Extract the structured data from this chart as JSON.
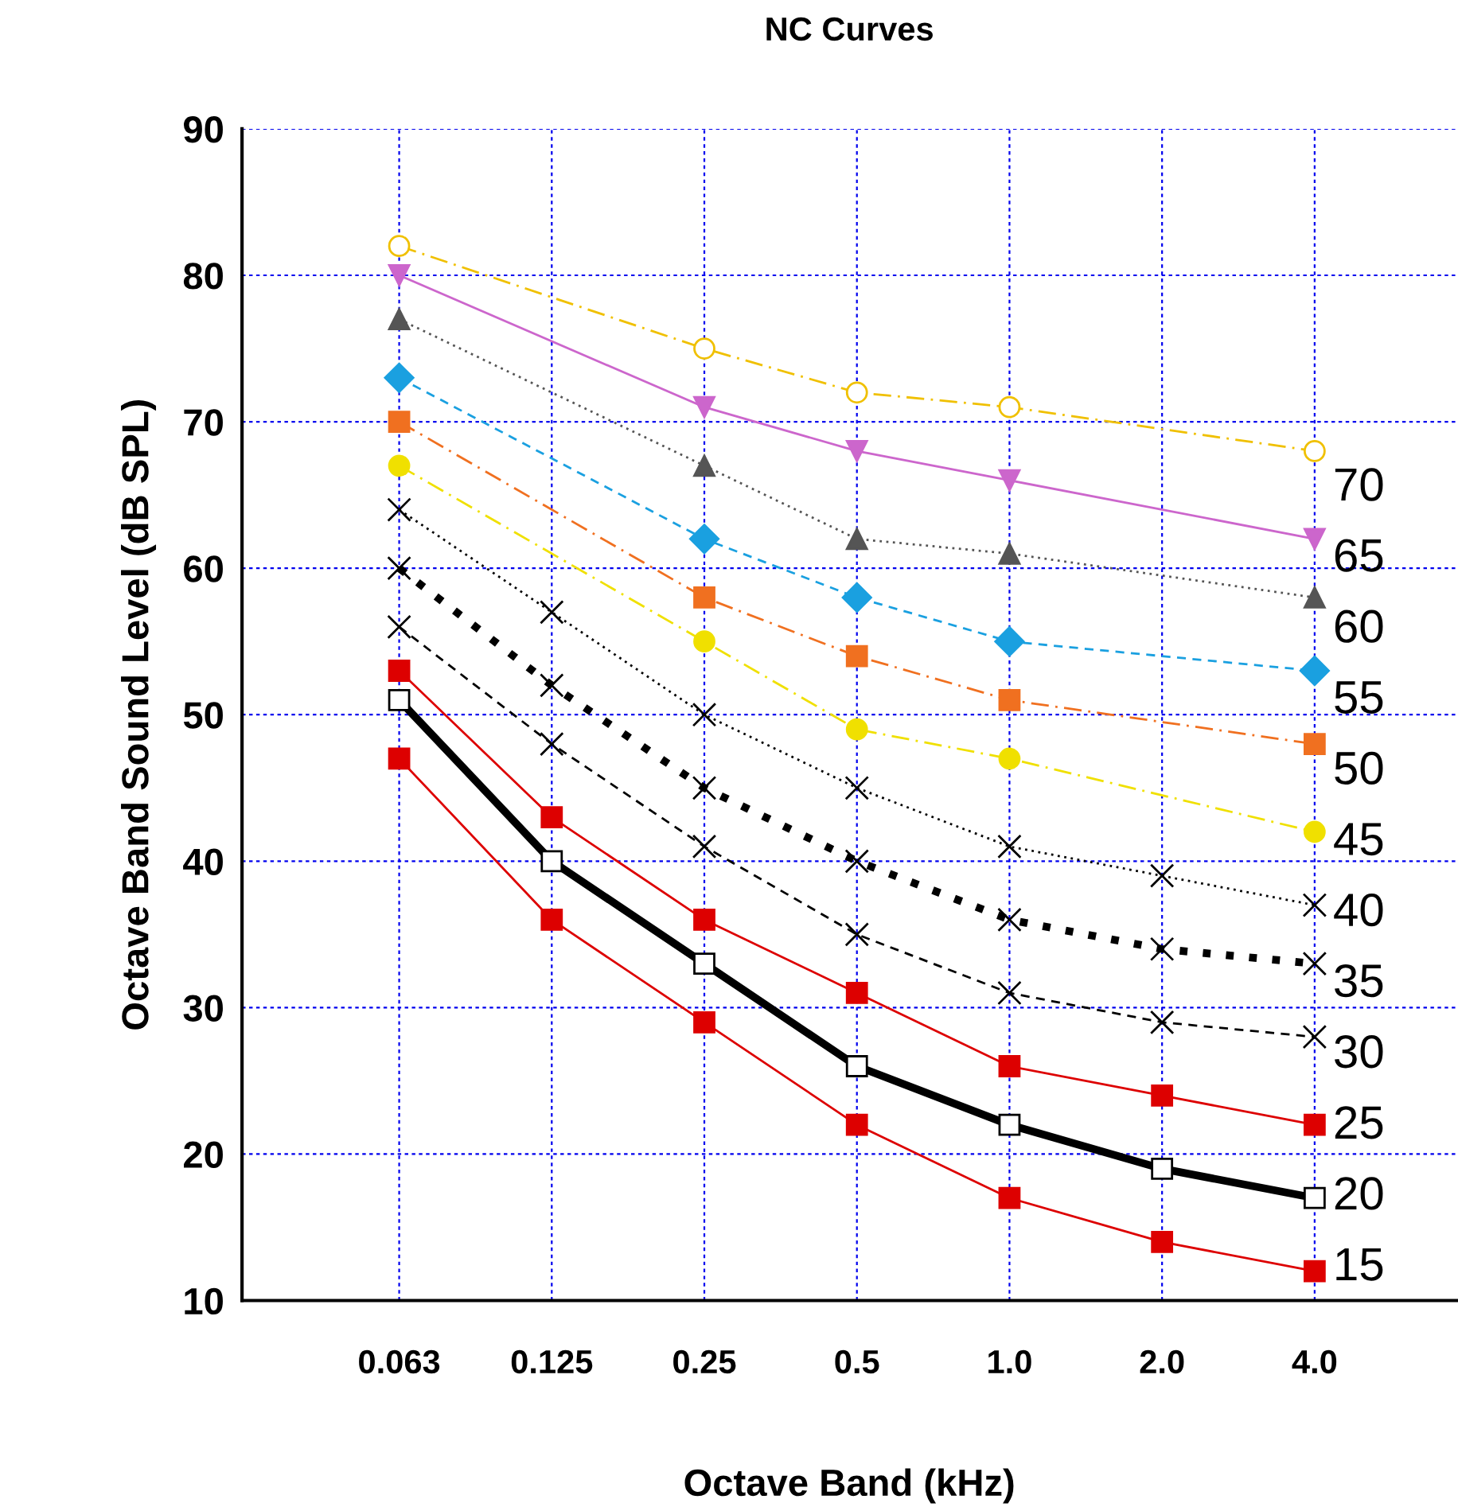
{
  "chart_data": {
    "type": "line",
    "title": "NC Curves",
    "xlabel": "Octave Band (kHz)",
    "ylabel": "Octave Band Sound Level (dB SPL)",
    "categories": [
      "0.063",
      "0.125",
      "0.25",
      "0.5",
      "1.0",
      "2.0",
      "4.0"
    ],
    "ylim": [
      10,
      90
    ],
    "yticks": [
      10,
      20,
      30,
      40,
      50,
      60,
      70,
      80,
      90
    ],
    "grid": true,
    "legend": false,
    "series": [
      {
        "name": "70",
        "color": "#f0c000",
        "marker": "circle",
        "line_style": "dashdot",
        "x": [
          "0.063",
          "0.25",
          "0.5",
          "1.0",
          "4.0"
        ],
        "values": [
          82,
          75,
          72,
          71,
          68
        ]
      },
      {
        "name": "65",
        "color": "#cc66cc",
        "marker": "triangle_down",
        "line_style": "solid",
        "x": [
          "0.063",
          "0.25",
          "0.5",
          "1.0",
          "4.0"
        ],
        "values": [
          80,
          71,
          68,
          66,
          62
        ]
      },
      {
        "name": "60",
        "color": "#555555",
        "marker": "triangle",
        "line_style": "dotted",
        "x": [
          "0.063",
          "0.25",
          "0.5",
          "1.0",
          "4.0"
        ],
        "values": [
          77,
          67,
          62,
          61,
          58
        ]
      },
      {
        "name": "55",
        "color": "#1aa0e0",
        "marker": "diamond",
        "line_style": "dashed",
        "x": [
          "0.063",
          "0.25",
          "0.5",
          "1.0",
          "4.0"
        ],
        "values": [
          73,
          62,
          58,
          55,
          53
        ]
      },
      {
        "name": "50",
        "color": "#f07020",
        "marker": "square",
        "line_style": "dashdot",
        "x": [
          "0.063",
          "0.25",
          "0.5",
          "1.0",
          "4.0"
        ],
        "values": [
          70,
          58,
          54,
          51,
          48
        ]
      },
      {
        "name": "45",
        "color": "#f0e000",
        "marker": "circle",
        "line_style": "dashdot",
        "x": [
          "0.063",
          "0.25",
          "0.5",
          "1.0",
          "4.0"
        ],
        "values": [
          67,
          55,
          49,
          47,
          42
        ]
      },
      {
        "name": "40",
        "color": "#000000",
        "marker": "cross",
        "line_style": "dotted",
        "values": [
          64,
          57,
          50,
          45,
          41,
          39,
          37
        ]
      },
      {
        "name": "35",
        "color": "#000000",
        "marker": "cross",
        "line_style": "dotted",
        "values": [
          60,
          52,
          45,
          40,
          36,
          34,
          33
        ]
      },
      {
        "name": "30",
        "color": "#000000",
        "marker": "cross",
        "line_style": "dashed",
        "values": [
          56,
          48,
          41,
          35,
          31,
          29,
          28
        ]
      },
      {
        "name": "25",
        "color": "#dd0000",
        "marker": "square",
        "line_style": "solid",
        "values": [
          53,
          43,
          36,
          31,
          26,
          24,
          22
        ]
      },
      {
        "name": "20",
        "color": "#000000",
        "marker": "square",
        "line_style": "solid",
        "values": [
          51,
          40,
          33,
          26,
          22,
          19,
          17
        ]
      },
      {
        "name": "15",
        "color": "#dd0000",
        "marker": "square",
        "line_style": "solid",
        "values": [
          47,
          36,
          29,
          22,
          17,
          14,
          12
        ]
      }
    ]
  }
}
